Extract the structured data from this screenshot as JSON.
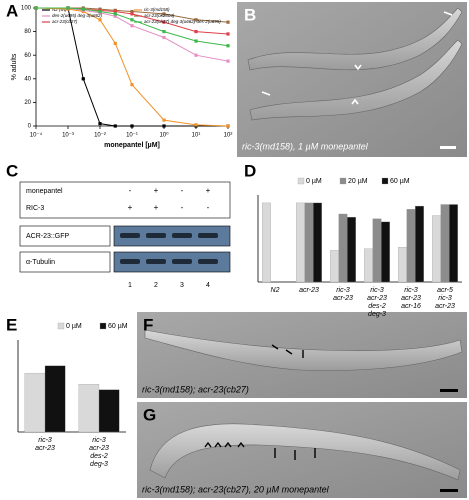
{
  "chart_data": [
    {
      "type": "line",
      "panel": "A",
      "x_label": "monepantel [µM]",
      "y_label": "% adults",
      "log_x": true,
      "x": [
        0.0001,
        0.001,
        0.003,
        0.01,
        0.03,
        0.1,
        1,
        10,
        100
      ],
      "xlim": [
        0.0001,
        100
      ],
      "xticks": [
        {
          "value": 0.0001,
          "label": "10⁻⁴"
        },
        {
          "value": 0.001,
          "label": "10⁻³"
        },
        {
          "value": 0.01,
          "label": "10⁻²"
        },
        {
          "value": 0.1,
          "label": "10⁻¹"
        },
        {
          "value": 1,
          "label": "10⁰"
        },
        {
          "value": 10,
          "label": "10¹"
        },
        {
          "value": 100,
          "label": "10²"
        }
      ],
      "ylim": [
        0,
        100
      ],
      "yticks": [
        0,
        20,
        40,
        60,
        80,
        100
      ],
      "series": [
        {
          "name": "N2 (wt)",
          "color": "#000000",
          "values": [
            100,
            100,
            40,
            2,
            0,
            0,
            0,
            0,
            0
          ]
        },
        {
          "name": "ric-3(md158)",
          "color": "#f0922b",
          "values": [
            100,
            99,
            97,
            90,
            70,
            35,
            5,
            1,
            0
          ]
        },
        {
          "name": "des-2(u695) deg-3(u662)",
          "color": "#e58fc4",
          "values": [
            100,
            100,
            98,
            96,
            93,
            85,
            75,
            60,
            55
          ]
        },
        {
          "name": "acr-23(ok2804)",
          "color": "#9a6b3c",
          "values": [
            100,
            100,
            100,
            99,
            98,
            97,
            95,
            90,
            88
          ]
        },
        {
          "name": "acr-23(cb27)",
          "color": "#e0404a",
          "values": [
            100,
            100,
            99,
            98,
            97,
            95,
            88,
            80,
            78
          ]
        },
        {
          "name": "acr-23(cb27) deg-3(u662) des-2(u695)",
          "color": "#3cb84a",
          "values": [
            100,
            100,
            99,
            97,
            95,
            90,
            80,
            72,
            68
          ]
        }
      ]
    },
    {
      "type": "bar",
      "panel": "D",
      "ylim": [
        0,
        5.5
      ],
      "categories": [
        [
          "N2"
        ],
        [
          "acr-23"
        ],
        [
          "ric-3",
          "acr-23"
        ],
        [
          "ric-3",
          "acr-23",
          "des-2",
          "deg-3"
        ],
        [
          "ric-3",
          "acr-23",
          "acr-16"
        ],
        [
          "acr-5",
          "ric-3",
          "acr-23"
        ]
      ],
      "series": [
        {
          "name": "0 µM",
          "color": "#d9d9d9",
          "values": [
            5,
            5,
            2,
            2.1,
            2.2,
            4.2
          ]
        },
        {
          "name": "20 µM",
          "color": "#8c8c8c",
          "values": [
            null,
            5,
            4.3,
            4.0,
            4.6,
            4.9
          ]
        },
        {
          "name": "60 µM",
          "color": "#111111",
          "values": [
            null,
            5,
            4.1,
            3.8,
            4.8,
            4.9
          ]
        }
      ]
    },
    {
      "type": "bar",
      "panel": "E",
      "ylim": [
        0,
        5
      ],
      "categories": [
        [
          "ric-3",
          "acr-23"
        ],
        [
          "ric-3",
          "acr-23",
          "des-2",
          "deg-3"
        ]
      ],
      "series": [
        {
          "name": "0 µM",
          "color": "#d9d9d9",
          "values": [
            3.2,
            2.6
          ]
        },
        {
          "name": "60 µM",
          "color": "#111111",
          "values": [
            3.6,
            2.3
          ]
        }
      ]
    }
  ],
  "blot": {
    "panel": "C",
    "rows": [
      {
        "label": "monepantel",
        "cells": [
          "-",
          "+",
          "-",
          "+"
        ]
      },
      {
        "label": "RIC-3",
        "cells": [
          "+",
          "+",
          "-",
          "-"
        ]
      }
    ],
    "bands": [
      "ACR-23::GFP",
      "α-Tubulin"
    ],
    "lanes": [
      "1",
      "2",
      "3",
      "4"
    ]
  },
  "images": [
    {
      "panel": "B",
      "caption": "ric-3(md158), 1 µM monepantel"
    },
    {
      "panel": "F",
      "caption": "ric-3(md158); acr-23(cb27)"
    },
    {
      "panel": "G",
      "caption": "ric-3(md158); acr-23(cb27), 20 µM monepantel"
    }
  ]
}
